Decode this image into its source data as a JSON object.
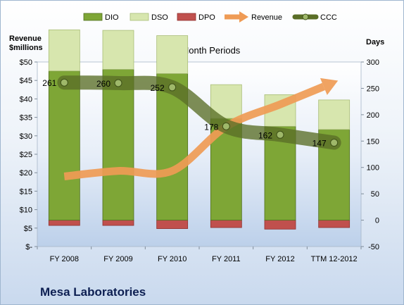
{
  "chart_data": {
    "type": "bar",
    "title": "12-Month Periods",
    "y_left_label_line1": "Revenue",
    "y_left_label_line2": "$millions",
    "y_right_label": "Days",
    "categories": [
      "FY 2008",
      "FY 2009",
      "FY 2010",
      "FY 2011",
      "FY 2012",
      "TTM 12-2012"
    ],
    "ylim_left": [
      0,
      50
    ],
    "ylim_right": [
      -50,
      300
    ],
    "left_ticks": [
      "$-",
      "$5",
      "$10",
      "$15",
      "$20",
      "$25",
      "$30",
      "$35",
      "$40",
      "$45",
      "$50"
    ],
    "right_ticks": [
      "-50",
      "0",
      "50",
      "100",
      "150",
      "200",
      "250",
      "300"
    ],
    "series": [
      {
        "name": "DIO",
        "type": "bar",
        "axis": "right",
        "values": [
          283,
          286,
          278,
          193,
          178,
          172
        ]
      },
      {
        "name": "DSO",
        "type": "bar",
        "axis": "right",
        "values": [
          78,
          74,
          72,
          64,
          60,
          56
        ]
      },
      {
        "name": "DPO",
        "type": "bar",
        "axis": "right",
        "values": [
          -10,
          -10,
          -16,
          -14,
          -17,
          -14
        ]
      },
      {
        "name": "Revenue",
        "type": "line",
        "axis": "left",
        "values": [
          19.0,
          20.5,
          20.5,
          32.5,
          38.5,
          44.5
        ]
      },
      {
        "name": "CCC",
        "type": "line",
        "axis": "right",
        "values": [
          261,
          260,
          252,
          178,
          162,
          147
        ]
      }
    ],
    "ccc_labels": [
      "261",
      "260",
      "252",
      "178",
      "162",
      "147"
    ],
    "colors": {
      "DIO": "#7ea636",
      "DSO": "#d7e6ae",
      "DPO": "#c0504d",
      "Revenue": "#ef9b55",
      "CCC": "#5a6e27"
    },
    "legend_position": "top"
  },
  "company": "Mesa Laboratories"
}
